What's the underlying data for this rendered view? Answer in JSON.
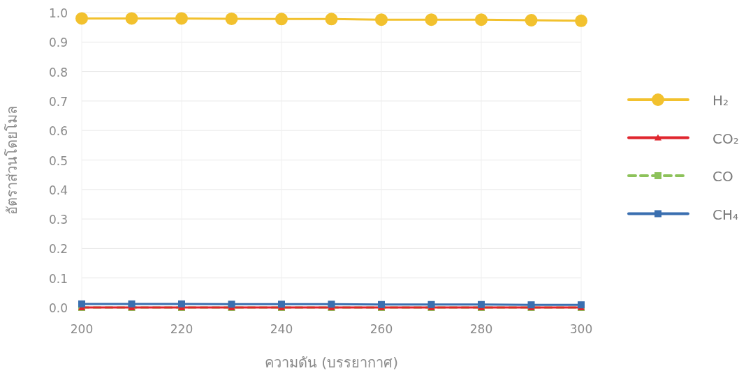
{
  "chart_data": {
    "type": "line",
    "xlabel": "ความดัน (บรรยากาศ)",
    "ylabel": "อัตราส่วนโดยโมล",
    "x": [
      200,
      210,
      220,
      230,
      240,
      250,
      260,
      270,
      280,
      290,
      300
    ],
    "series": [
      {
        "name": "H₂",
        "color": "#f2c12e",
        "marker": "circle",
        "line_style": "solid",
        "values": [
          0.98,
          0.98,
          0.98,
          0.979,
          0.978,
          0.978,
          0.976,
          0.976,
          0.976,
          0.974,
          0.972
        ]
      },
      {
        "name": "CO₂",
        "color": "#e0262e",
        "marker": "triangle",
        "line_style": "solid",
        "values": [
          0,
          0,
          0,
          0,
          0,
          0,
          0,
          0,
          0,
          0,
          0
        ]
      },
      {
        "name": "CO",
        "color": "#8dc25a",
        "marker": "square",
        "line_style": "dashed",
        "values": [
          0,
          0,
          0,
          0,
          0,
          0,
          0,
          0,
          0,
          0,
          0
        ]
      },
      {
        "name": "CH₄",
        "color": "#3a6fb0",
        "marker": "square",
        "line_style": "solid",
        "values": [
          0.012,
          0.012,
          0.012,
          0.011,
          0.011,
          0.011,
          0.01,
          0.01,
          0.01,
          0.009,
          0.009
        ]
      }
    ],
    "xlim": [
      200,
      300
    ],
    "ylim": [
      0,
      1
    ],
    "xticks": [
      200,
      220,
      240,
      260,
      280,
      300
    ],
    "yticks": [
      {
        "value": 0,
        "label": "0.0"
      },
      0.1,
      0.2,
      0.3,
      0.4,
      0.5,
      0.6,
      0.7,
      0.8,
      0.9,
      {
        "value": 1,
        "label": "1.0"
      }
    ],
    "grid": true,
    "legend": "right"
  }
}
